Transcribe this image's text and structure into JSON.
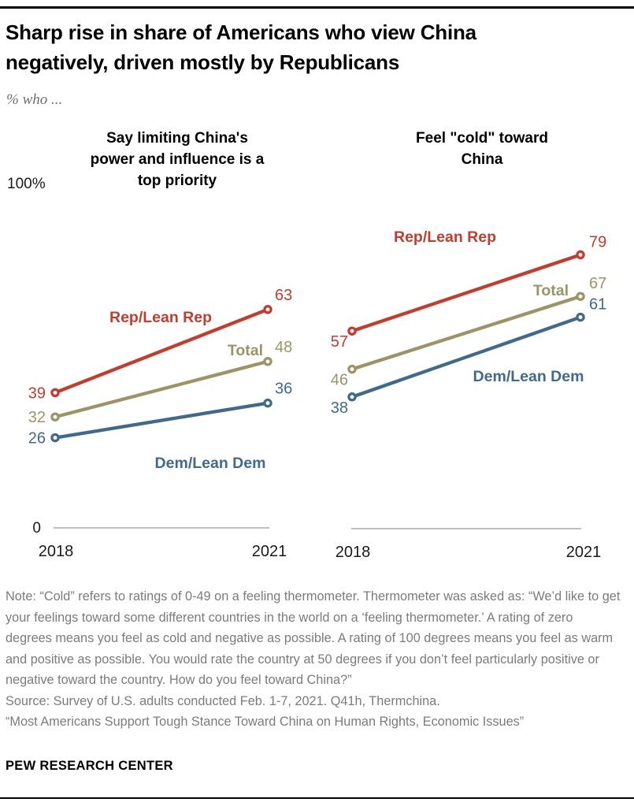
{
  "header": {
    "title": "Sharp rise in share of Americans who view China\nnegatively, driven mostly by Republicans",
    "subtitle": "% who ..."
  },
  "chart_data": [
    {
      "type": "line",
      "title": "Say limiting China's\npower and influence is a\ntop priority",
      "x": [
        "2018",
        "2021"
      ],
      "series": [
        {
          "name": "Rep/Lean Rep",
          "values": [
            39,
            63
          ],
          "color": "#c63c2c"
        },
        {
          "name": "Total",
          "values": [
            32,
            48
          ],
          "color": "#9c9465"
        },
        {
          "name": "Dem/Lean Dem",
          "values": [
            26,
            36
          ],
          "color": "#3f6a8d"
        }
      ],
      "ylim": [
        0,
        100
      ],
      "y_axis_top_label": "100%",
      "y_axis_bottom_label": "0",
      "grid": false,
      "legend_position": "inline-labels"
    },
    {
      "type": "line",
      "title": "Feel \"cold\" toward\nChina",
      "x": [
        "2018",
        "2021"
      ],
      "series": [
        {
          "name": "Rep/Lean Rep",
          "values": [
            57,
            79
          ],
          "color": "#c63c2c"
        },
        {
          "name": "Total",
          "values": [
            46,
            67
          ],
          "color": "#9c9465"
        },
        {
          "name": "Dem/Lean Dem",
          "values": [
            38,
            61
          ],
          "color": "#3f6a8d"
        }
      ],
      "ylim": [
        0,
        100
      ],
      "grid": false,
      "legend_position": "inline-labels"
    }
  ],
  "footer": {
    "note": "Note: “Cold” refers to ratings of 0-49 on a feeling thermometer. Thermometer was asked as: “We’d like to get your feelings toward some different countries in the world on a ‘feeling thermometer.’ A rating of zero degrees means you feel as cold and negative as possible. A rating of 100 degrees means you feel as warm and positive as possible. You would rate the country at 50 degrees if you don’t feel particularly positive or negative toward the country. How do you feel toward China?”",
    "source": "Source: Survey of U.S. adults conducted Feb. 1-7, 2021. Q41h, Thermchina.",
    "report": "“Most Americans Support Tough Stance Toward China on Human Rights, Economic Issues”",
    "org": "PEW RESEARCH CENTER"
  }
}
